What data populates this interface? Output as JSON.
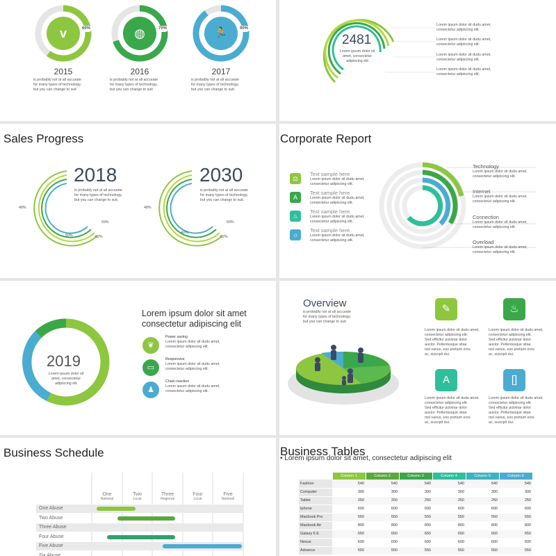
{
  "colors": {
    "green": "#8dc63f",
    "dgreen": "#3aa74a",
    "teal": "#2fbf9a",
    "blue": "#4aacd0",
    "gray": "#e5e5e5",
    "lime": "#b5d83c"
  },
  "slide1": {
    "items": [
      {
        "year": "2015",
        "pct": "60%",
        "icon": "vimeo-icon",
        "glyph": "v",
        "desc": [
          "is probably not at all accurate",
          "for many types of technology,",
          "but you can change to suit"
        ]
      },
      {
        "year": "2016",
        "pct": "70%",
        "icon": "basketball-icon",
        "glyph": "◍",
        "desc": [
          "is probably not at all accurate",
          "for many types of technology,",
          "but you can change to suit"
        ]
      },
      {
        "year": "2017",
        "pct": "90%",
        "icon": "runner-icon",
        "glyph": "🏃",
        "desc": [
          "is probably not at all accurate",
          "for many types of technology,",
          "but you can change to suit"
        ]
      }
    ]
  },
  "slide2": {
    "number": "2481",
    "desc": [
      "Lorem ipsum dolor sit",
      "amet, consectetur",
      "adipiscing elit"
    ],
    "notes": [
      [
        "Lorem ipsum dolor sit dudu amet,",
        "consectetur adipiscing elit."
      ],
      [
        "Lorem ipsum dolor sit dudu amet,",
        "consectetur adipiscing elit."
      ],
      [
        "Lorem ipsum dolor sit dudu amet,",
        "consectetur adipiscing elit."
      ],
      [
        "Lorem ipsum dolor sit dudu amet,",
        "consectetur adipiscing elit."
      ]
    ]
  },
  "slide3": {
    "title": "Sales Progress",
    "charts": [
      {
        "year": "2018",
        "desc": [
          "is probably not at all accurate",
          "for many types of technology,",
          "but you can change to suit."
        ],
        "labels": [
          "48%",
          "69%",
          "50%",
          "62%"
        ]
      },
      {
        "year": "2030",
        "desc": [
          "is probably not at all accurate",
          "for many types of technology,",
          "but you can change to suit."
        ],
        "labels": [
          "48%",
          "69%",
          "40%",
          "62%"
        ]
      }
    ]
  },
  "slide4": {
    "title": "Corporate Report",
    "items": [
      {
        "label": "Text sample here",
        "icon": "scales-icon",
        "glyph": "⚖",
        "desc": [
          "Lorem ipsum dolor sit dudu amet,",
          "consectetur adipiscing elit."
        ]
      },
      {
        "label": "Text sample here",
        "icon": "compass-icon",
        "glyph": "A",
        "desc": [
          "Lorem ipsum dolor sit dudu amet,",
          "consectetur adipiscing elit."
        ]
      },
      {
        "label": "Text sample here",
        "icon": "flame-icon",
        "glyph": "♨",
        "desc": [
          "Lorem ipsum dolor sit dudu amet,",
          "consectetur adipiscing elit."
        ]
      },
      {
        "label": "Text sample here",
        "icon": "bulb-icon",
        "glyph": "☼",
        "desc": [
          "Lorem ipsum dolor sit dudu amet,",
          "consectetur adipiscing elit."
        ]
      }
    ],
    "cats": [
      {
        "name": "Technology",
        "desc": [
          "Lorem ipsum dolor sit dudu amet,",
          "consectetur adipiscing elit."
        ]
      },
      {
        "name": "Internet",
        "desc": [
          "Lorem ipsum dolor sit dudu amet,",
          "consectetur adipiscing elit."
        ]
      },
      {
        "name": "Connection",
        "desc": [
          "Lorem ipsum dolor sit dudu amet,",
          "consectetur adipiscing elit."
        ]
      },
      {
        "name": "Overload",
        "desc": [
          "Lorem ipsum dolor sit dudu amet,",
          "consectetur adipiscing elit."
        ]
      }
    ]
  },
  "slide5": {
    "year": "2019",
    "desc": [
      "Lorem ipsum dolor sit",
      "amet, consectetur",
      "adipiscing elit"
    ],
    "heading": [
      "Lorem ipsum dolor sit amet",
      "consectetur adipiscing elit"
    ],
    "items": [
      {
        "title": "Power saving",
        "icon": "leaf-icon",
        "glyph": "❦",
        "desc": [
          "Lorem ipsum dolor sit dudu amet,",
          "consectetur adipiscing elit."
        ]
      },
      {
        "title": "Responsive",
        "icon": "monitor-icon",
        "glyph": "▭",
        "desc": [
          "Lorem ipsum dolor sit dudu amet,",
          "consectetur adipiscing elit."
        ]
      },
      {
        "title": "Chain reaction",
        "icon": "person-icon",
        "glyph": "♟",
        "desc": [
          "Lorem ipsum dolor sit dudu amet,",
          "consectetur adipiscing elit."
        ]
      }
    ]
  },
  "slide6": {
    "title": "Overview",
    "desc": [
      "is probably not at all accurate",
      "for many types of technology,",
      "but you can change to suit"
    ],
    "cards": [
      {
        "icon": "pen-icon",
        "glyph": "✎",
        "desc": [
          "Lorem ipsum dolor sit dudu amet,",
          "consectetur adipiscing elit.",
          "Sed efficitur pulvinar dolor",
          "auctor. Pellentesque vitae",
          "nisl varius, eso pretium eros",
          "ac, suscipit dui."
        ]
      },
      {
        "icon": "fire-icon",
        "glyph": "♨",
        "desc": [
          "Lorem ipsum dolor sit dudu amet,",
          "consectetur adipiscing elit.",
          "Sed efficitur pulvinar dolor",
          "auctor. Pellentesque vitae",
          "nisl varius, eso pretium eros",
          "ac, suscipit dui."
        ]
      },
      {
        "icon": "compass-icon",
        "glyph": "A",
        "desc": [
          "Lorem ipsum dolor sit dudu amet,",
          "consectetur adipiscing elit.",
          "Sed efficitur pulvinar dolor",
          "auctor. Pellentesque vitae",
          "nisl varius, eso pretium eros",
          "ac, suscipit dui."
        ]
      },
      {
        "icon": "bracket-icon",
        "glyph": "[]",
        "desc": [
          "Lorem ipsum dolor sit dudu amet,",
          "consectetur adipiscing elit.",
          "Sed efficitur pulvinar dolor",
          "auctor. Pellentesque vitae",
          "nisl varius, eso pretium eros",
          "ac, suscipit dui."
        ]
      }
    ]
  },
  "slide7": {
    "title": "Business Schedule",
    "cols": [
      {
        "name": "One",
        "sub": "National"
      },
      {
        "name": "Two",
        "sub": "Local"
      },
      {
        "name": "Three",
        "sub": "Regional"
      },
      {
        "name": "Four",
        "sub": "Local"
      },
      {
        "name": "Five",
        "sub": "National"
      }
    ],
    "rows": [
      {
        "label": "One Abuse",
        "start": 0.03,
        "end": 0.29,
        "color": "#8dc63f"
      },
      {
        "label": "Two Abuse",
        "start": 0.17,
        "end": 0.55,
        "color": "#5aa83e"
      },
      {
        "label": "Three Abuse",
        "start": null,
        "end": null,
        "color": ""
      },
      {
        "label": "Four Abuse",
        "start": 0.1,
        "end": 0.55,
        "color": "#2fa06e"
      },
      {
        "label": "Five Abuse",
        "start": 0.47,
        "end": 0.99,
        "color": "#4aacd0"
      },
      {
        "label": "Six Abuse",
        "start": null,
        "end": null,
        "color": ""
      }
    ]
  },
  "slide8": {
    "title": "Business Tables",
    "bullet": "• Lorem ipsum dolor sit amet, consectetur adipiscing elit",
    "headers": [
      "Column 1",
      "Column 2",
      "Column 3",
      "Column 4",
      "Column 5",
      "Column 6"
    ],
    "header_colors": [
      "#8dc63f",
      "#5aa83e",
      "#3aa74a",
      "#2fbf9a",
      "#3bb3c3",
      "#4aacd0"
    ],
    "rows": [
      {
        "label": "Fashion",
        "values": [
          "540",
          "540",
          "540",
          "540",
          "540",
          "540"
        ]
      },
      {
        "label": "Computer",
        "values": [
          "300",
          "300",
          "300",
          "300",
          "300",
          "300"
        ]
      },
      {
        "label": "Tablet",
        "values": [
          "250",
          "250",
          "250",
          "250",
          "250",
          "250"
        ]
      },
      {
        "label": "Iphone",
        "values": [
          "600",
          "600",
          "600",
          "600",
          "600",
          "600"
        ]
      },
      {
        "label": "Macbook Pro",
        "values": [
          "550",
          "550",
          "550",
          "550",
          "550",
          "550"
        ]
      },
      {
        "label": "Macbook Air",
        "values": [
          "800",
          "800",
          "800",
          "800",
          "800",
          "800"
        ]
      },
      {
        "label": "Galaxy 6 E",
        "values": [
          "650",
          "650",
          "650",
          "650",
          "650",
          "650"
        ]
      },
      {
        "label": "Nexus",
        "values": [
          "600",
          "600",
          "600",
          "600",
          "600",
          "600"
        ]
      },
      {
        "label": "Advance",
        "values": [
          "550",
          "550",
          "550",
          "550",
          "550",
          "550"
        ]
      }
    ]
  }
}
